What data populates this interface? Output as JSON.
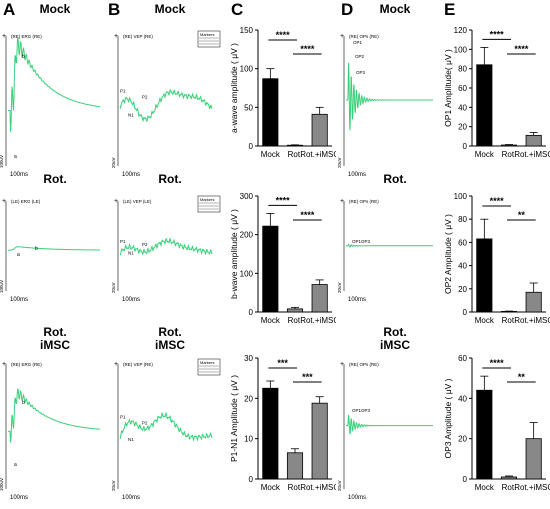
{
  "panels": {
    "A": "A",
    "B": "B",
    "C": "C",
    "D": "D",
    "E": "E"
  },
  "conditions": {
    "A": [
      "Mock",
      "Rot.",
      "Rot.\niMSC"
    ],
    "B": [
      "Mock",
      "Rot.",
      "Rot.\niMSC"
    ],
    "D": [
      "Mock",
      "Rot.",
      "Rot.\niMSC"
    ]
  },
  "trace_labels": {
    "erg": "(RE) ERG (RE)",
    "erg_le": "(LE) ERG (LE)",
    "vep": "(RE) VEP (RE)",
    "vep_le": "(LE) VEP (LE)",
    "ops": "(RE) OPs (RE)",
    "time": "100ms",
    "a_mark": "a",
    "b_mark": "b",
    "p1": "P1",
    "n1": "N1",
    "p2": "P2",
    "op1": "OP1",
    "op2": "OP2",
    "op3": "OP3",
    "op_combo": "OP1OP3",
    "scale_erg": "100uV",
    "scale_vep": "20uV",
    "legend_title": "Markers"
  },
  "colors": {
    "trace": "#3ad07a",
    "bar_mock": "#000000",
    "bar_rot": "#888888",
    "bar_imsc": "#888888"
  },
  "chart_data": [
    {
      "type": "bar",
      "id": "a_wave",
      "categories": [
        "Mock",
        "Rot.",
        "Rot.+iMSC"
      ],
      "values": [
        87,
        1,
        41
      ],
      "errors": [
        13,
        0.5,
        9
      ],
      "ylabel": "a-wave amplitude ( μV )",
      "ylim": [
        0,
        150
      ],
      "yticks": [
        0,
        50,
        100,
        150
      ],
      "sig": [
        {
          "from": 0,
          "to": 1,
          "label": "****"
        },
        {
          "from": 1,
          "to": 2,
          "label": "****"
        }
      ]
    },
    {
      "type": "bar",
      "id": "b_wave",
      "categories": [
        "Mock",
        "Rot.",
        "Rot.+iMSC"
      ],
      "values": [
        222,
        8,
        71
      ],
      "errors": [
        33,
        4,
        12
      ],
      "ylabel": "b-wave amplitude ( μV )",
      "ylim": [
        0,
        300
      ],
      "yticks": [
        0,
        100,
        200,
        300
      ],
      "sig": [
        {
          "from": 0,
          "to": 1,
          "label": "****"
        },
        {
          "from": 1,
          "to": 2,
          "label": "****"
        }
      ]
    },
    {
      "type": "bar",
      "id": "p1n1",
      "categories": [
        "Mock",
        "Rot.",
        "Rot.+iMSC"
      ],
      "values": [
        22.5,
        6.5,
        18.8
      ],
      "errors": [
        1.8,
        1.0,
        1.6
      ],
      "ylabel": "P1-N1 Amplitude ( μV )",
      "ylim": [
        0,
        30
      ],
      "yticks": [
        0,
        10,
        20,
        30
      ],
      "sig": [
        {
          "from": 0,
          "to": 1,
          "label": "***"
        },
        {
          "from": 1,
          "to": 2,
          "label": "***"
        }
      ]
    },
    {
      "type": "bar",
      "id": "op1",
      "categories": [
        "Mock",
        "Rot.",
        "Rot.+iMSC"
      ],
      "values": [
        84,
        1,
        11
      ],
      "errors": [
        18,
        0.5,
        3
      ],
      "ylabel": "OP1 Amplitude( μV )",
      "ylim": [
        0,
        120
      ],
      "yticks": [
        0,
        20,
        40,
        60,
        80,
        100,
        120
      ],
      "sig": [
        {
          "from": 0,
          "to": 1,
          "label": "****"
        },
        {
          "from": 1,
          "to": 2,
          "label": "****"
        }
      ]
    },
    {
      "type": "bar",
      "id": "op2",
      "categories": [
        "Mock",
        "Rot.",
        "Rot.+iMSC"
      ],
      "values": [
        63,
        0.5,
        17
      ],
      "errors": [
        17,
        0.3,
        8
      ],
      "ylabel": "OP2 Amplitude ( μV )",
      "ylim": [
        0,
        100
      ],
      "yticks": [
        0,
        20,
        40,
        60,
        80,
        100
      ],
      "sig": [
        {
          "from": 0,
          "to": 1,
          "label": "****"
        },
        {
          "from": 1,
          "to": 2,
          "label": "**"
        }
      ]
    },
    {
      "type": "bar",
      "id": "op3",
      "categories": [
        "Mock",
        "Rot.",
        "Rot.+iMSC"
      ],
      "values": [
        44,
        1,
        20
      ],
      "errors": [
        7,
        0.5,
        8
      ],
      "ylabel": "OP3 Amplitude ( μV )",
      "ylim": [
        0,
        60
      ],
      "yticks": [
        0,
        20,
        40,
        60
      ],
      "sig": [
        {
          "from": 0,
          "to": 1,
          "label": "****"
        },
        {
          "from": 1,
          "to": 2,
          "label": "**"
        }
      ]
    }
  ]
}
